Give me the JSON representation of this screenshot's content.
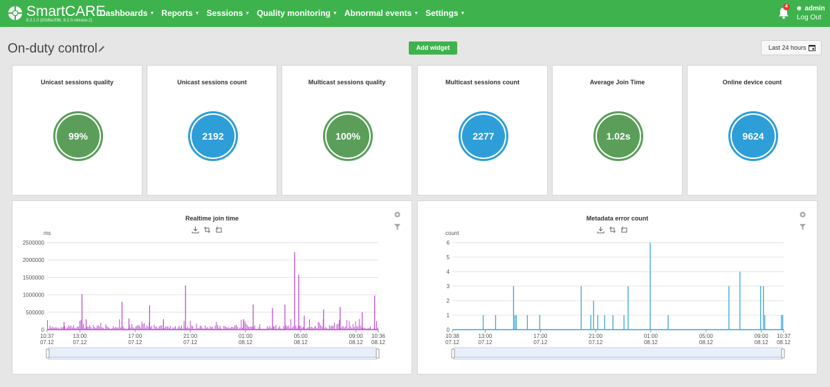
{
  "app": {
    "brand": "SmartCARE",
    "version": "8.2.1.0 (83d9e2f9b, 8.2.0.release.2)",
    "menu": [
      "Dashboards",
      "Reports",
      "Sessions",
      "Quality monitoring",
      "Abnormal events",
      "Settings"
    ],
    "notifications": "4",
    "user": "admin",
    "logout": "Log Out"
  },
  "page": {
    "title": "On-duty control",
    "add_widget": "Add widget",
    "time_range": "Last 24 hours"
  },
  "kpis": [
    {
      "title": "Unicast sessions quality",
      "value": "99%",
      "color": "#5a9e5a"
    },
    {
      "title": "Unicast sessions count",
      "value": "2192",
      "color": "#2e9ed9"
    },
    {
      "title": "Multicast sessions quality",
      "value": "100%",
      "color": "#5a9e5a"
    },
    {
      "title": "Multicast sessions count",
      "value": "2277",
      "color": "#2e9ed9"
    },
    {
      "title": "Average Join Time",
      "value": "1.02s",
      "color": "#5a9e5a"
    },
    {
      "title": "Online device count",
      "value": "9624",
      "color": "#2e9ed9"
    }
  ],
  "chart_data": [
    {
      "type": "bar",
      "title": "Realtime join time",
      "ylabel": "ms",
      "ylim": [
        0,
        2500000
      ],
      "y_ticks": [
        "0",
        "500000",
        "1000000",
        "1500000",
        "2000000",
        "2500000"
      ],
      "x_ticks": [
        [
          "10:37",
          "07.12"
        ],
        [
          "13:00",
          "07.12"
        ],
        [
          "17:00",
          "07.12"
        ],
        [
          "21:00",
          "07.12"
        ],
        [
          "01:00",
          "08.12"
        ],
        [
          "05:00",
          "08.12"
        ],
        [
          "09:00",
          "08.12"
        ],
        [
          "10:36",
          "08.12"
        ]
      ],
      "x_range_hours": [
        0,
        24
      ],
      "color": "#c04fd4",
      "peaks": [
        [
          1.2,
          220000
        ],
        [
          2.5,
          1020000
        ],
        [
          2.8,
          300000
        ],
        [
          5.4,
          800000
        ],
        [
          5.9,
          320000
        ],
        [
          7.4,
          700000
        ],
        [
          8.4,
          300000
        ],
        [
          10.0,
          1270000
        ],
        [
          14.2,
          300000
        ],
        [
          14.9,
          720000
        ],
        [
          16.3,
          620000
        ],
        [
          17.2,
          720000
        ],
        [
          17.9,
          2230000
        ],
        [
          18.2,
          1580000
        ],
        [
          18.6,
          400000
        ],
        [
          20.0,
          580000
        ],
        [
          21.2,
          650000
        ],
        [
          22.8,
          500000
        ],
        [
          23.7,
          980000
        ]
      ],
      "series_name": ""
    },
    {
      "type": "bar",
      "title": "Metadata error count",
      "ylabel": "count",
      "ylim": [
        0,
        6
      ],
      "y_ticks": [
        "0",
        "1",
        "2",
        "3",
        "4",
        "5",
        "6"
      ],
      "x_ticks": [
        [
          "10:38",
          "07.12"
        ],
        [
          "13:00",
          "07.12"
        ],
        [
          "17:00",
          "07.12"
        ],
        [
          "21:00",
          "07.12"
        ],
        [
          "01:00",
          "08.12"
        ],
        [
          "05:00",
          "08.12"
        ],
        [
          "09:00",
          "08.12"
        ],
        [
          "10:37",
          "08.12"
        ]
      ],
      "x_range_hours": [
        0,
        24
      ],
      "color": "#3aa6d8",
      "peaks": [
        [
          2.2,
          1
        ],
        [
          3.1,
          1
        ],
        [
          4.4,
          3
        ],
        [
          4.5,
          1
        ],
        [
          4.6,
          1
        ],
        [
          5.4,
          1
        ],
        [
          6.3,
          1
        ],
        [
          9.3,
          3
        ],
        [
          10.0,
          1
        ],
        [
          10.2,
          2
        ],
        [
          10.5,
          1
        ],
        [
          11.0,
          1
        ],
        [
          11.6,
          1
        ],
        [
          12.4,
          1
        ],
        [
          12.7,
          3
        ],
        [
          14.3,
          6
        ],
        [
          15.6,
          1
        ],
        [
          20.0,
          3
        ],
        [
          20.8,
          4
        ],
        [
          22.3,
          3
        ],
        [
          22.5,
          3
        ],
        [
          22.6,
          1
        ],
        [
          23.8,
          1
        ],
        [
          23.9,
          1
        ]
      ],
      "series_name": ""
    }
  ]
}
